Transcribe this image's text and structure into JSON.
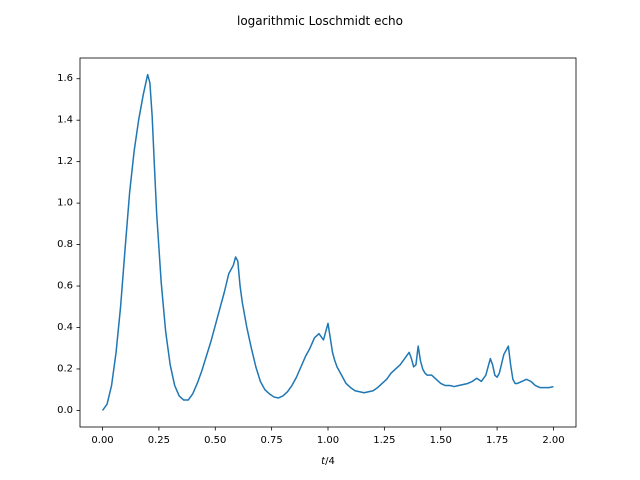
{
  "chart_data": {
    "type": "line",
    "title": "logarithmic Loschmidt echo",
    "xlabel": "t/4",
    "xlabel_var": "t",
    "xlabel_rest": "/4",
    "ylabel": "",
    "xlim": [
      -0.1,
      2.1
    ],
    "ylim": [
      -0.08,
      1.7
    ],
    "x_ticks": [
      0.0,
      0.25,
      0.5,
      0.75,
      1.0,
      1.25,
      1.5,
      1.75,
      2.0
    ],
    "x_tick_labels": [
      "0.00",
      "0.25",
      "0.50",
      "0.75",
      "1.00",
      "1.25",
      "1.50",
      "1.75",
      "2.00"
    ],
    "y_ticks": [
      0.0,
      0.2,
      0.4,
      0.6,
      0.8,
      1.0,
      1.2,
      1.4,
      1.6
    ],
    "y_tick_labels": [
      "0.0",
      "0.2",
      "0.4",
      "0.6",
      "0.8",
      "1.0",
      "1.2",
      "1.4",
      "1.6"
    ],
    "grid": false,
    "legend": "none",
    "line_color": "#1f77b4",
    "series": [
      {
        "x": [
          0.0,
          0.02,
          0.04,
          0.06,
          0.08,
          0.1,
          0.12,
          0.14,
          0.16,
          0.18,
          0.2,
          0.21,
          0.22,
          0.23,
          0.24,
          0.26,
          0.28,
          0.3,
          0.32,
          0.34,
          0.36,
          0.38,
          0.4,
          0.42,
          0.44,
          0.46,
          0.48,
          0.5,
          0.52,
          0.54,
          0.56,
          0.58,
          0.59,
          0.6,
          0.61,
          0.62,
          0.64,
          0.66,
          0.68,
          0.7,
          0.72,
          0.74,
          0.76,
          0.78,
          0.8,
          0.82,
          0.84,
          0.86,
          0.88,
          0.9,
          0.92,
          0.94,
          0.96,
          0.98,
          1.0,
          1.01,
          1.02,
          1.03,
          1.04,
          1.06,
          1.08,
          1.1,
          1.12,
          1.14,
          1.16,
          1.18,
          1.2,
          1.22,
          1.24,
          1.26,
          1.28,
          1.3,
          1.32,
          1.34,
          1.36,
          1.37,
          1.38,
          1.39,
          1.4,
          1.41,
          1.42,
          1.43,
          1.44,
          1.46,
          1.48,
          1.5,
          1.52,
          1.54,
          1.56,
          1.58,
          1.6,
          1.62,
          1.64,
          1.66,
          1.68,
          1.7,
          1.72,
          1.73,
          1.74,
          1.75,
          1.76,
          1.78,
          1.8,
          1.81,
          1.82,
          1.83,
          1.84,
          1.86,
          1.88,
          1.9,
          1.92,
          1.94,
          1.96,
          1.98,
          2.0
        ],
        "y": [
          0.0,
          0.03,
          0.12,
          0.28,
          0.5,
          0.78,
          1.05,
          1.25,
          1.4,
          1.52,
          1.62,
          1.58,
          1.42,
          1.18,
          0.95,
          0.62,
          0.38,
          0.22,
          0.12,
          0.07,
          0.05,
          0.05,
          0.08,
          0.13,
          0.19,
          0.26,
          0.33,
          0.41,
          0.49,
          0.57,
          0.66,
          0.7,
          0.74,
          0.72,
          0.6,
          0.52,
          0.4,
          0.3,
          0.21,
          0.14,
          0.1,
          0.08,
          0.065,
          0.06,
          0.07,
          0.09,
          0.12,
          0.16,
          0.21,
          0.26,
          0.3,
          0.35,
          0.37,
          0.34,
          0.42,
          0.35,
          0.28,
          0.24,
          0.21,
          0.17,
          0.13,
          0.11,
          0.095,
          0.09,
          0.085,
          0.09,
          0.095,
          0.11,
          0.13,
          0.15,
          0.18,
          0.2,
          0.22,
          0.25,
          0.28,
          0.25,
          0.21,
          0.22,
          0.31,
          0.24,
          0.2,
          0.18,
          0.17,
          0.17,
          0.15,
          0.13,
          0.12,
          0.12,
          0.115,
          0.12,
          0.125,
          0.13,
          0.14,
          0.155,
          0.14,
          0.17,
          0.25,
          0.22,
          0.17,
          0.16,
          0.18,
          0.27,
          0.31,
          0.22,
          0.15,
          0.13,
          0.13,
          0.14,
          0.15,
          0.14,
          0.12,
          0.11,
          0.11,
          0.11,
          0.115
        ]
      }
    ]
  }
}
